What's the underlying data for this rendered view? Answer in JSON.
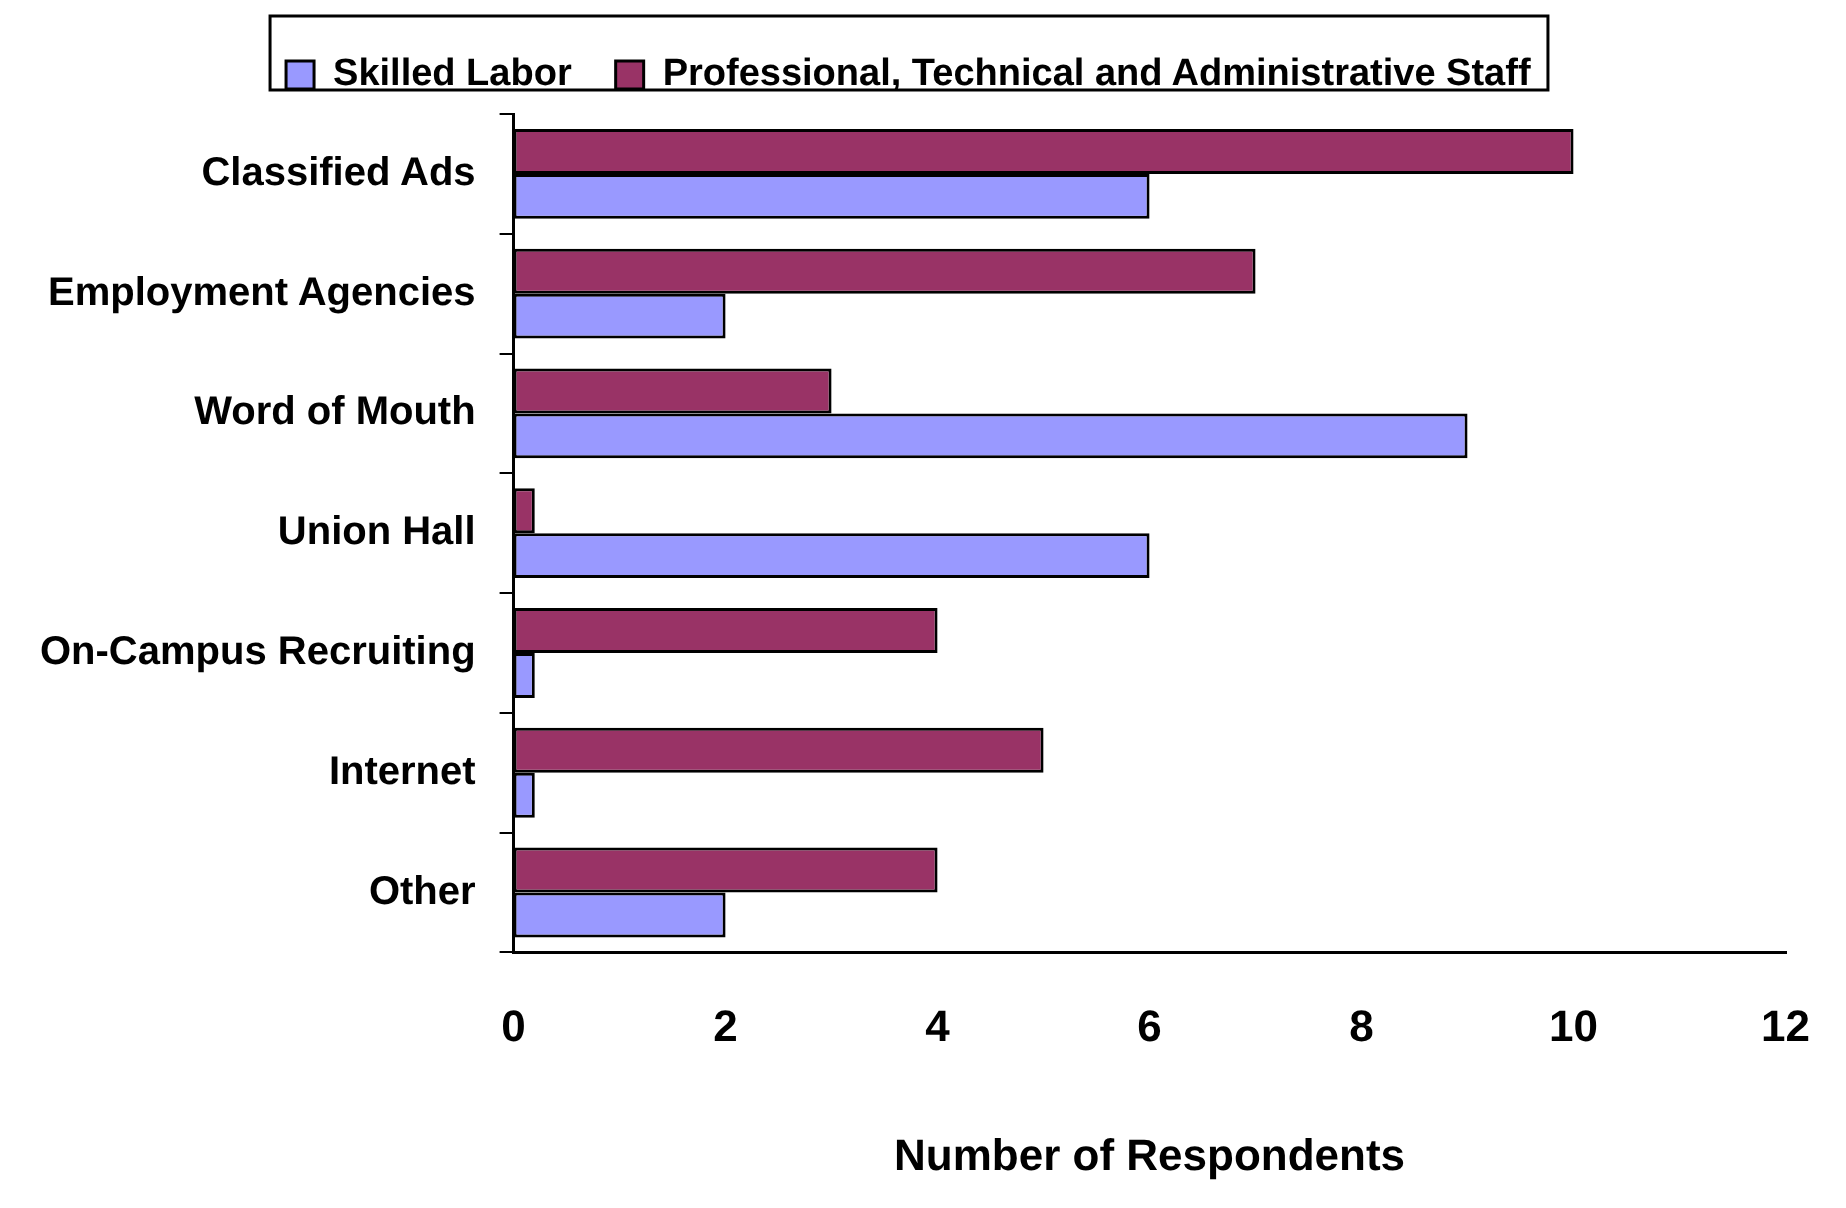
{
  "chart_data": {
    "type": "bar",
    "orientation": "horizontal",
    "xlabel": "Number of Respondents",
    "categories": [
      "Classified Ads",
      "Employment Agencies",
      "Word of Mouth",
      "Union Hall",
      "On-Campus Recruiting",
      "Internet",
      "Other"
    ],
    "series": [
      {
        "name": "Skilled Labor",
        "color": "#9999ff",
        "values": [
          6,
          2,
          9,
          6,
          0.2,
          0.2,
          2
        ]
      },
      {
        "name": "Professional, Technical and Administrative Staff",
        "color": "#993366",
        "values": [
          10,
          7,
          3,
          0.2,
          4,
          5,
          4
        ]
      }
    ],
    "xlim": [
      0,
      12
    ],
    "xticks": [
      0,
      2,
      4,
      6,
      8,
      10,
      12
    ],
    "grid": false,
    "legend": "top"
  }
}
